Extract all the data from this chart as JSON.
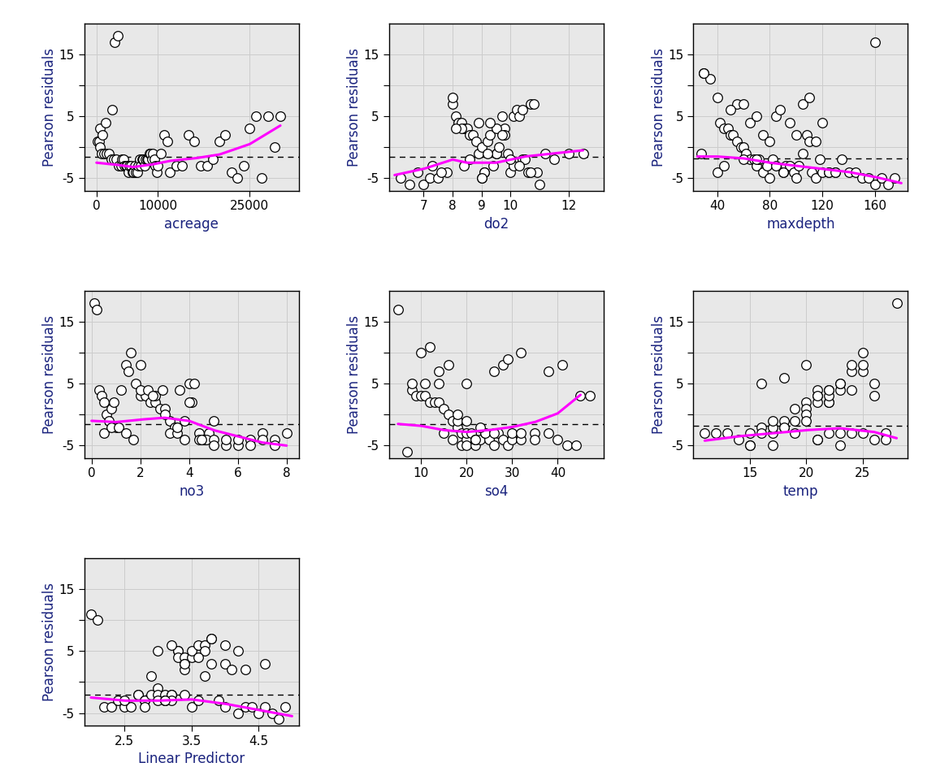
{
  "subplots": [
    {
      "xlabel": "acreage",
      "xlim": [
        -2000,
        33000
      ],
      "xticks": [
        0,
        10000,
        25000
      ],
      "xticklabels": [
        "0",
        "10000",
        "25000"
      ],
      "x": [
        200,
        400,
        600,
        800,
        1200,
        1600,
        2000,
        2400,
        2800,
        3200,
        3600,
        4000,
        4200,
        4400,
        4600,
        4800,
        5000,
        5200,
        5400,
        5600,
        5800,
        6000,
        6200,
        6400,
        6600,
        6800,
        7000,
        7200,
        7400,
        7600,
        7800,
        8000,
        8200,
        8400,
        8600,
        8800,
        9000,
        9200,
        9400,
        9600,
        9800,
        10000,
        10500,
        11000,
        11500,
        12000,
        13000,
        14000,
        15000,
        16000,
        17000,
        18000,
        19000,
        20000,
        21000,
        22000,
        23000,
        24000,
        25000,
        26000,
        27000,
        28000,
        29000,
        30000,
        500,
        1000,
        1500,
        2500,
        3000,
        3500
      ],
      "y": [
        1,
        1,
        0,
        -1,
        -1,
        -1,
        -1,
        -2,
        -2,
        -2,
        -3,
        -3,
        -2,
        -2,
        -3,
        -3,
        -3,
        -4,
        -3,
        -3,
        -4,
        -4,
        -3,
        -4,
        -4,
        -3,
        -2,
        -3,
        -2,
        -2,
        -3,
        -2,
        -2,
        -2,
        -1,
        -1,
        -2,
        -1,
        -2,
        -3,
        -4,
        -3,
        -1,
        2,
        1,
        -4,
        -3,
        -3,
        2,
        1,
        -3,
        -3,
        -2,
        1,
        2,
        -4,
        -5,
        -3,
        3,
        5,
        -5,
        5,
        0,
        5,
        3,
        2,
        4,
        6,
        17,
        18
      ],
      "loess_x": [
        0,
        3000,
        6000,
        9000,
        12000,
        16000,
        20000,
        25000,
        30000
      ],
      "loess_y": [
        -2.5,
        -2.8,
        -3.2,
        -2.8,
        -2.2,
        -1.8,
        -1.2,
        0.5,
        3.5
      ],
      "hline": -1.5,
      "ylim": [
        -7,
        20
      ],
      "yticks": [
        -5,
        0,
        5,
        10,
        15
      ],
      "yticklabels": [
        "-5",
        "",
        "5",
        "",
        "15"
      ]
    },
    {
      "xlabel": "do2",
      "xlim": [
        5.8,
        13.2
      ],
      "xticks": [
        7,
        8,
        9,
        10,
        12
      ],
      "xticklabels": [
        "7",
        "8",
        "9",
        "10",
        "12"
      ],
      "x": [
        6.2,
        6.5,
        6.8,
        7.0,
        7.2,
        7.5,
        7.8,
        8.0,
        8.1,
        8.2,
        8.3,
        8.4,
        8.5,
        8.6,
        8.7,
        8.8,
        8.9,
        9.0,
        9.0,
        9.1,
        9.1,
        9.2,
        9.3,
        9.4,
        9.5,
        9.5,
        9.6,
        9.7,
        9.8,
        9.9,
        10.0,
        10.1,
        10.2,
        10.3,
        10.4,
        10.5,
        10.6,
        10.7,
        10.8,
        10.9,
        11.0,
        11.2,
        11.5,
        12.0,
        12.5,
        8.0,
        8.3,
        8.6,
        8.9,
        9.2,
        9.5,
        9.8,
        10.1,
        10.4,
        7.3,
        7.6,
        8.1,
        8.4,
        9.0,
        9.3,
        9.7,
        10.0,
        10.3,
        10.7
      ],
      "y": [
        -5,
        -6,
        -4,
        -6,
        -5,
        -5,
        -4,
        7,
        5,
        4,
        4,
        3,
        3,
        2,
        2,
        1,
        -1,
        0,
        -5,
        -4,
        -4,
        1,
        2,
        -3,
        -1,
        -1,
        0,
        5,
        3,
        -1,
        -4,
        5,
        6,
        5,
        -2,
        -2,
        -4,
        7,
        7,
        -4,
        -6,
        -1,
        -2,
        -1,
        -1,
        8,
        3,
        -2,
        4,
        -1,
        3,
        2,
        -3,
        6,
        -3,
        -4,
        3,
        -3,
        -5,
        4,
        2,
        -2,
        -3,
        -4
      ],
      "loess_x": [
        6.0,
        7.0,
        8.0,
        8.5,
        9.5,
        10.5,
        11.5,
        12.5
      ],
      "loess_y": [
        -4.5,
        -3.5,
        -2.0,
        -2.5,
        -2.5,
        -1.5,
        -1.0,
        -0.5
      ],
      "hline": -1.5,
      "ylim": [
        -7,
        20
      ],
      "yticks": [
        -5,
        0,
        5,
        10,
        15
      ],
      "yticklabels": [
        "-5",
        "",
        "5",
        "",
        "15"
      ]
    },
    {
      "xlabel": "maxdepth",
      "xlim": [
        22,
        185
      ],
      "xticks": [
        40,
        80,
        120,
        160
      ],
      "xticklabels": [
        "40",
        "80",
        "120",
        "160"
      ],
      "x": [
        28,
        30,
        35,
        40,
        42,
        45,
        48,
        50,
        52,
        55,
        58,
        60,
        62,
        65,
        68,
        70,
        72,
        75,
        78,
        80,
        82,
        85,
        88,
        90,
        92,
        95,
        98,
        100,
        102,
        105,
        108,
        110,
        112,
        115,
        118,
        120,
        125,
        130,
        135,
        140,
        145,
        150,
        155,
        160,
        165,
        170,
        175,
        55,
        60,
        65,
        70,
        75,
        80,
        85,
        90,
        95,
        100,
        105,
        110,
        115,
        120,
        125,
        130,
        40,
        45,
        50,
        60,
        70,
        160,
        30
      ],
      "y": [
        -1,
        12,
        11,
        8,
        4,
        3,
        3,
        2,
        2,
        1,
        0,
        0,
        -1,
        -2,
        -2,
        -3,
        -2,
        -4,
        -3,
        -5,
        -2,
        5,
        6,
        -4,
        -3,
        -3,
        -4,
        -5,
        -3,
        -1,
        2,
        1,
        -4,
        -5,
        -2,
        -4,
        -4,
        -4,
        -2,
        -4,
        -4,
        -5,
        -5,
        -6,
        -5,
        -6,
        -5,
        7,
        -2,
        4,
        -2,
        2,
        1,
        -3,
        -4,
        4,
        2,
        7,
        8,
        1,
        4,
        -4,
        -4,
        -4,
        -3,
        6,
        7,
        5,
        17,
        12
      ],
      "loess_x": [
        25,
        40,
        60,
        80,
        100,
        120,
        140,
        160,
        180
      ],
      "loess_y": [
        -1.5,
        -1.5,
        -1.8,
        -2.5,
        -3.0,
        -3.5,
        -4.0,
        -4.8,
        -5.8
      ],
      "hline": -1.8,
      "ylim": [
        -7,
        20
      ],
      "yticks": [
        -5,
        0,
        5,
        10,
        15
      ],
      "yticklabels": [
        "-5",
        "",
        "5",
        "",
        "15"
      ]
    },
    {
      "xlabel": "no3",
      "xlim": [
        -0.3,
        8.5
      ],
      "xticks": [
        0,
        2,
        4,
        6,
        8
      ],
      "xticklabels": [
        "0",
        "2",
        "4",
        "6",
        "8"
      ],
      "x": [
        0.1,
        0.2,
        0.3,
        0.4,
        0.5,
        0.6,
        0.7,
        0.8,
        0.9,
        1.0,
        1.2,
        1.4,
        1.6,
        1.8,
        2.0,
        2.2,
        2.4,
        2.6,
        2.8,
        3.0,
        3.2,
        3.4,
        3.6,
        3.8,
        4.0,
        4.2,
        4.4,
        4.6,
        4.8,
        5.0,
        5.5,
        6.0,
        6.5,
        7.0,
        7.5,
        0.5,
        0.8,
        1.1,
        1.4,
        1.7,
        2.0,
        2.3,
        2.6,
        2.9,
        3.2,
        3.5,
        3.8,
        4.1,
        4.4,
        4.7,
        5.0,
        1.5,
        2.0,
        2.5,
        3.0,
        3.5,
        4.0,
        4.5,
        5.0,
        5.5,
        6.0,
        6.5,
        7.0,
        7.5,
        8.0
      ],
      "y": [
        18,
        17,
        4,
        3,
        2,
        0,
        -1,
        1,
        2,
        -2,
        4,
        8,
        10,
        5,
        3,
        3,
        2,
        2,
        1,
        1,
        -1,
        -2,
        4,
        -1,
        5,
        5,
        -3,
        -4,
        -3,
        -1,
        -5,
        -5,
        -4,
        -3,
        -4,
        -3,
        -2,
        -2,
        -3,
        -4,
        4,
        4,
        3,
        4,
        -3,
        -3,
        -4,
        2,
        -4,
        -4,
        -4,
        7,
        8,
        3,
        0,
        -2,
        2,
        -4,
        -5,
        -4,
        -4,
        -5,
        -4,
        -5,
        -3
      ],
      "loess_x": [
        0,
        1,
        2,
        3,
        4,
        5,
        6,
        7,
        8
      ],
      "loess_y": [
        -1.0,
        -1.2,
        -0.8,
        -0.5,
        -1.0,
        -2.5,
        -3.5,
        -4.5,
        -5.0
      ],
      "hline": -1.5,
      "ylim": [
        -7,
        20
      ],
      "yticks": [
        -5,
        0,
        5,
        10,
        15
      ],
      "yticklabels": [
        "-5",
        "",
        "5",
        "",
        "15"
      ]
    },
    {
      "xlabel": "so4",
      "xlim": [
        3,
        50
      ],
      "xticks": [
        10,
        20,
        30,
        40
      ],
      "xticklabels": [
        "10",
        "20",
        "30",
        "40"
      ],
      "x": [
        5,
        7,
        8,
        9,
        10,
        11,
        12,
        13,
        14,
        15,
        15,
        16,
        17,
        18,
        18,
        19,
        19,
        20,
        20,
        20,
        21,
        22,
        22,
        22,
        23,
        24,
        25,
        26,
        27,
        28,
        29,
        30,
        32,
        35,
        38,
        40,
        42,
        45,
        10,
        12,
        14,
        16,
        18,
        20,
        22,
        24,
        26,
        28,
        30,
        32,
        8,
        11,
        14,
        17,
        20,
        23,
        26,
        29,
        32,
        35,
        38,
        41,
        44,
        47
      ],
      "y": [
        17,
        -6,
        4,
        3,
        3,
        3,
        2,
        2,
        2,
        1,
        -3,
        0,
        -1,
        -2,
        -1,
        -5,
        -3,
        -4,
        -3,
        -5,
        -3,
        -5,
        -4,
        -4,
        -4,
        -3,
        -4,
        -5,
        -3,
        -4,
        -5,
        -4,
        -4,
        -3,
        -3,
        -4,
        -5,
        3,
        10,
        11,
        5,
        8,
        0,
        -1,
        -4,
        -3,
        -3,
        8,
        -3,
        -3,
        5,
        5,
        7,
        -4,
        5,
        -2,
        7,
        9,
        10,
        -4,
        7,
        8,
        -5,
        3
      ],
      "loess_x": [
        5,
        10,
        15,
        20,
        25,
        30,
        35,
        40,
        45
      ],
      "loess_y": [
        -1.5,
        -1.8,
        -2.5,
        -2.8,
        -2.5,
        -2.0,
        -1.2,
        0.2,
        3.2
      ],
      "hline": -1.5,
      "ylim": [
        -7,
        20
      ],
      "yticks": [
        -5,
        0,
        5,
        10,
        15
      ],
      "yticklabels": [
        "-5",
        "",
        "5",
        "",
        "15"
      ]
    },
    {
      "xlabel": "temp",
      "xlim": [
        10,
        29
      ],
      "xticks": [
        15,
        20,
        25
      ],
      "xticklabels": [
        "15",
        "20",
        "25"
      ],
      "x": [
        11,
        12,
        13,
        14,
        15,
        15,
        16,
        16,
        17,
        17,
        17,
        18,
        18,
        18,
        19,
        19,
        20,
        20,
        20,
        20,
        21,
        21,
        21,
        21,
        21,
        22,
        22,
        22,
        22,
        22,
        23,
        23,
        23,
        23,
        24,
        24,
        24,
        25,
        25,
        25,
        26,
        26,
        27,
        27,
        28,
        15,
        17,
        19,
        21,
        23,
        25,
        16,
        18,
        20,
        22,
        24,
        26
      ],
      "y": [
        -3,
        -3,
        -3,
        -4,
        -3,
        -5,
        -2,
        -3,
        -3,
        -2,
        -1,
        -2,
        -1,
        -2,
        -1,
        1,
        2,
        1,
        0,
        -1,
        3,
        4,
        2,
        3,
        -4,
        4,
        2,
        2,
        3,
        -3,
        4,
        5,
        5,
        -3,
        7,
        8,
        -3,
        10,
        7,
        8,
        5,
        -4,
        -3,
        -4,
        18,
        -5,
        -5,
        -3,
        -4,
        -5,
        -3,
        5,
        6,
        8,
        4,
        4,
        3
      ],
      "loess_x": [
        11,
        14,
        17,
        20,
        23,
        26,
        28
      ],
      "loess_y": [
        -4.2,
        -3.5,
        -3.0,
        -2.5,
        -2.2,
        -2.8,
        -3.8
      ],
      "hline": -1.8,
      "ylim": [
        -7,
        20
      ],
      "yticks": [
        -5,
        0,
        5,
        10,
        15
      ],
      "yticklabels": [
        "-5",
        "",
        "5",
        "",
        "15"
      ]
    },
    {
      "xlabel": "Linear Predictor",
      "xlim": [
        1.9,
        5.1
      ],
      "xticks": [
        2.5,
        3.5,
        4.5
      ],
      "xticklabels": [
        "2.5",
        "3.5",
        "4.5"
      ],
      "x": [
        2.0,
        2.1,
        2.2,
        2.3,
        2.4,
        2.5,
        2.6,
        2.7,
        2.7,
        2.8,
        2.8,
        2.9,
        2.9,
        3.0,
        3.0,
        3.0,
        3.1,
        3.1,
        3.1,
        3.2,
        3.2,
        3.2,
        3.3,
        3.3,
        3.3,
        3.4,
        3.4,
        3.4,
        3.5,
        3.5,
        3.5,
        3.6,
        3.6,
        3.7,
        3.7,
        3.8,
        3.8,
        3.9,
        4.0,
        4.1,
        4.2,
        4.3,
        4.4,
        4.5,
        4.6,
        4.7,
        4.8,
        4.9,
        2.5,
        2.8,
        3.1,
        3.4,
        3.7,
        4.0,
        4.3,
        4.6,
        3.0,
        3.2,
        3.4,
        3.6,
        3.8,
        4.0,
        4.2
      ],
      "y": [
        11,
        10,
        -4,
        -4,
        -3,
        -4,
        -4,
        -2,
        -2,
        -3,
        -3,
        -2,
        1,
        -1,
        -2,
        -3,
        -2,
        -3,
        -3,
        -2,
        -2,
        -3,
        5,
        5,
        4,
        4,
        -2,
        3,
        4,
        5,
        -4,
        6,
        -3,
        6,
        5,
        7,
        3,
        -3,
        3,
        2,
        -5,
        -4,
        -4,
        -5,
        -4,
        -5,
        -6,
        -4,
        -3,
        -4,
        -3,
        2,
        1,
        -4,
        2,
        3,
        5,
        6,
        3,
        4,
        7,
        6,
        5
      ],
      "loess_x": [
        2.0,
        2.5,
        3.0,
        3.5,
        4.0,
        4.5,
        5.0
      ],
      "loess_y": [
        -2.5,
        -3.0,
        -3.0,
        -2.8,
        -3.5,
        -4.5,
        -5.5
      ],
      "hline": -2.0,
      "ylim": [
        -7,
        20
      ],
      "yticks": [
        -5,
        0,
        5,
        10,
        15
      ],
      "yticklabels": [
        "-5",
        "",
        "5",
        "",
        "15"
      ]
    }
  ],
  "grid_rows": 3,
  "grid_cols": 3,
  "fig_bg_color": "white",
  "plot_bg_color": "#e8e8e8",
  "scatter_color": "black",
  "scatter_facecolor": "white",
  "scatter_edgewidth": 0.9,
  "scatter_size": 28,
  "loess_color": "magenta",
  "loess_lw": 2.2,
  "hline_color": "black",
  "hline_lw": 1.0,
  "hline_ls": "--",
  "ylabel": "Pearson residuals",
  "ylabel_color": "#1a237e",
  "xlabel_color": "#1a237e",
  "label_fontsize": 12,
  "tick_fontsize": 11,
  "grid_color": "#cccccc",
  "grid_lw": 0.7,
  "spine_color": "black",
  "spine_lw": 1.0
}
